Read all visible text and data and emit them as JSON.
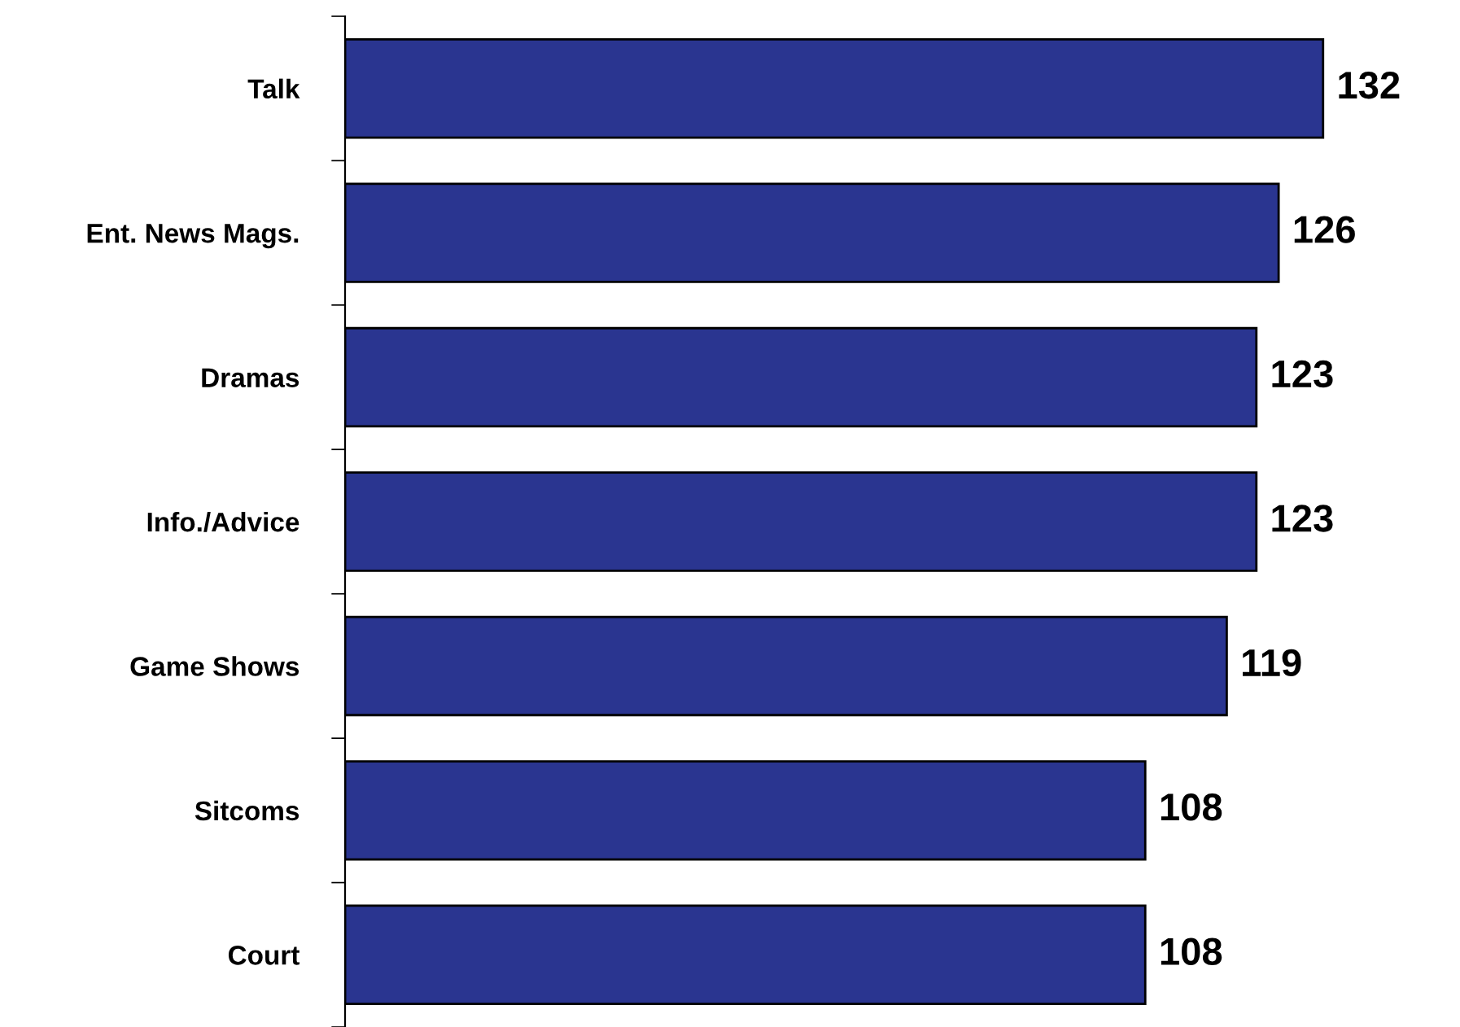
{
  "chart_data": {
    "type": "bar",
    "orientation": "horizontal",
    "categories": [
      "Talk",
      "Ent. News Mags.",
      "Dramas",
      "Info./Advice",
      "Game Shows",
      "Sitcoms",
      "Court"
    ],
    "values": [
      132,
      126,
      123,
      123,
      119,
      108,
      108
    ],
    "color": "#2a3590",
    "data_labels": true,
    "tick_labels": "y",
    "grid": false,
    "legend": false
  }
}
